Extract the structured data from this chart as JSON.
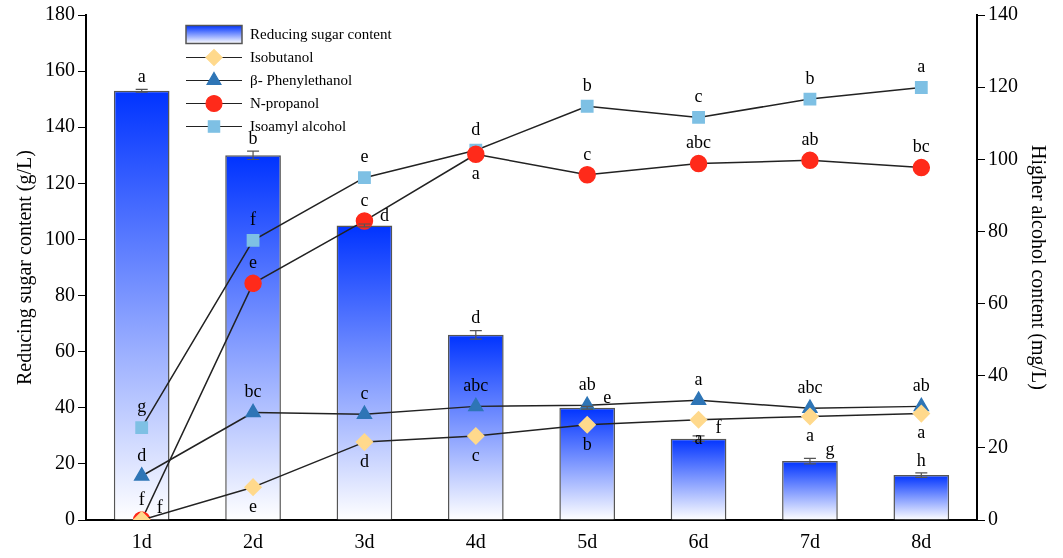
{
  "chart_data": {
    "type": "bar",
    "categories": [
      "1d",
      "2d",
      "3d",
      "4d",
      "5d",
      "6d",
      "7d",
      "8d"
    ],
    "ylabel": "Reducing sugar content (g/L)",
    "y2label": "Higher alcohol content (mg/L)",
    "ylim": [
      0,
      180
    ],
    "yticks": [
      0,
      20,
      40,
      60,
      80,
      100,
      120,
      140,
      160,
      180
    ],
    "y2lim": [
      0,
      140
    ],
    "y2ticks": [
      0,
      20,
      40,
      60,
      80,
      100,
      120,
      140
    ],
    "grid": false,
    "legend": "top left",
    "series": [
      {
        "name": "Reducing sugar content",
        "color": "#0033ff",
        "values": [
          153,
          130,
          105,
          66,
          40,
          29,
          21,
          16
        ],
        "errors": [
          0.5,
          1.5,
          0.5,
          1.5,
          0.5,
          1,
          1,
          0.8
        ],
        "value_labels": [
          "a",
          "b",
          "d",
          "d",
          "e",
          "f",
          "g",
          "h"
        ]
      },
      {
        "name": "Isobutanol",
        "type": "line",
        "axis": "y2",
        "marker": "diamond",
        "color": "#ffd98c",
        "values": [
          0,
          9.1,
          21.6,
          23.3,
          26.4,
          27.8,
          28.7,
          29.5
        ],
        "value_labels": [
          "f",
          "e",
          "d",
          "c",
          "b",
          "a",
          "a",
          "a"
        ]
      },
      {
        "name": "β- Phenylethanol",
        "type": "line",
        "axis": "y2",
        "marker": "triangle",
        "color": "#2e75b6",
        "values": [
          12.2,
          29.8,
          29.3,
          31.5,
          31.8,
          33.2,
          31,
          31.5
        ],
        "value_labels": [
          "d",
          "bc",
          "c",
          "abc",
          "ab",
          "a",
          "abc",
          "ab"
        ]
      },
      {
        "name": "N-propanol",
        "type": "line",
        "axis": "y2",
        "marker": "circle",
        "color": "#ff2a1a",
        "values": [
          0,
          65.6,
          82.9,
          101.4,
          95.7,
          98.8,
          99.7,
          97.7
        ],
        "value_labels": [
          "f",
          "e",
          "c",
          "a",
          "c",
          "abc",
          "ab",
          "bc"
        ]
      },
      {
        "name": "Isoamyl alcohol",
        "type": "line",
        "axis": "y2",
        "marker": "square",
        "color": "#7ec0e4",
        "values": [
          25.6,
          77.5,
          94.9,
          102.5,
          114.7,
          111.6,
          116.7,
          119.9
        ],
        "value_labels": [
          "g",
          "f",
          "e",
          "d",
          "b",
          "c",
          "b",
          "a"
        ]
      }
    ]
  }
}
